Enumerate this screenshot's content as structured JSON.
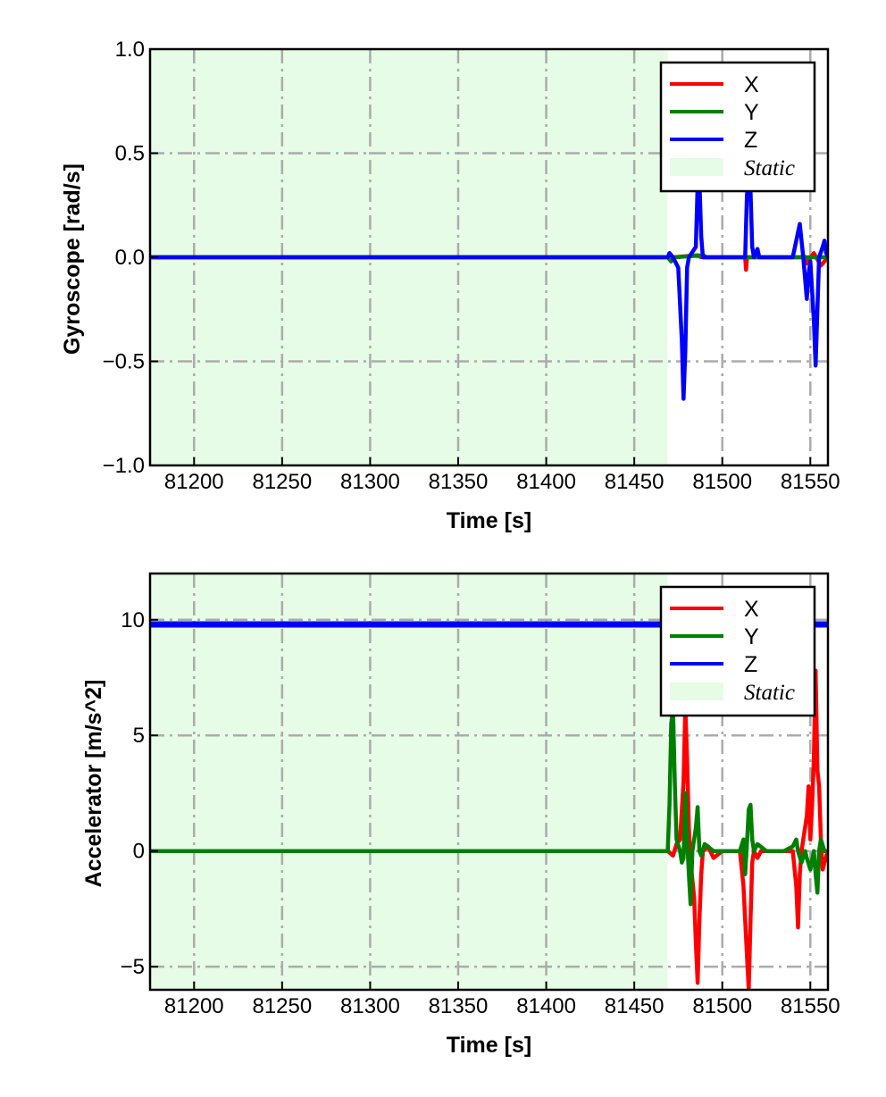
{
  "chart_data": [
    {
      "type": "line",
      "ylabel": "Gyroscope [rad/s]",
      "xlabel": "Time [s]",
      "xlim": [
        81175,
        81560
      ],
      "ylim": [
        -1.0,
        1.0
      ],
      "xticks": [
        81200,
        81250,
        81300,
        81350,
        81400,
        81450,
        81500,
        81550
      ],
      "xtick_labels": [
        "81200",
        "81250",
        "81300",
        "81350",
        "81400",
        "81450",
        "81500",
        "81550"
      ],
      "yticks": [
        -1.0,
        -0.5,
        0.0,
        0.5,
        1.0
      ],
      "ytick_labels": [
        "−1.0",
        "−0.5",
        "0.0",
        "0.5",
        "1.0"
      ],
      "grid": true,
      "legend_position": "top-right",
      "static_region": [
        81175,
        81469
      ],
      "legend": [
        {
          "label": "X",
          "color": "#ff0000",
          "kind": "line"
        },
        {
          "label": "Y",
          "color": "#007f00",
          "kind": "line"
        },
        {
          "label": "Z",
          "color": "#0000ff",
          "kind": "line"
        },
        {
          "label": "Static",
          "color": "#e6fce6",
          "kind": "patch"
        }
      ],
      "series": [
        {
          "name": "X",
          "color": "#ff0000",
          "points": [
            [
              81175,
              0
            ],
            [
              81469,
              0
            ],
            [
              81470,
              0.01
            ],
            [
              81472,
              0
            ],
            [
              81486,
              0.01
            ],
            [
              81488,
              0
            ],
            [
              81513,
              0
            ],
            [
              81513.5,
              -0.06
            ],
            [
              81514,
              0
            ],
            [
              81545,
              0
            ],
            [
              81546,
              0.01
            ],
            [
              81548,
              -0.03
            ],
            [
              81552,
              0.02
            ],
            [
              81556,
              -0.04
            ],
            [
              81560,
              0
            ]
          ]
        },
        {
          "name": "Y",
          "color": "#007f00",
          "points": [
            [
              81175,
              0
            ],
            [
              81469,
              0
            ],
            [
              81471,
              -0.02
            ],
            [
              81473,
              0
            ],
            [
              81489,
              0.01
            ],
            [
              81491,
              0
            ],
            [
              81560,
              0
            ]
          ]
        },
        {
          "name": "Z",
          "color": "#0000ff",
          "points": [
            [
              81175,
              0
            ],
            [
              81469,
              0
            ],
            [
              81470,
              0.02
            ],
            [
              81472,
              0
            ],
            [
              81475,
              -0.05
            ],
            [
              81477,
              -0.4
            ],
            [
              81478,
              -0.68
            ],
            [
              81479,
              -0.45
            ],
            [
              81480,
              -0.05
            ],
            [
              81481,
              0
            ],
            [
              81485,
              0.05
            ],
            [
              81486,
              0.35
            ],
            [
              81487,
              0.37
            ],
            [
              81488,
              0.1
            ],
            [
              81489,
              0
            ],
            [
              81513,
              0
            ],
            [
              81514,
              0.3
            ],
            [
              81515,
              0.38
            ],
            [
              81516,
              0.32
            ],
            [
              81517,
              0.05
            ],
            [
              81518,
              0
            ],
            [
              81520,
              0.04
            ],
            [
              81521,
              0
            ],
            [
              81540,
              0
            ],
            [
              81543,
              0.12
            ],
            [
              81544,
              0.16
            ],
            [
              81545,
              0.08
            ],
            [
              81546,
              0
            ],
            [
              81548,
              -0.2
            ],
            [
              81549,
              -0.08
            ],
            [
              81550,
              -0.02
            ],
            [
              81552,
              -0.3
            ],
            [
              81553,
              -0.52
            ],
            [
              81554,
              -0.25
            ],
            [
              81555,
              0
            ],
            [
              81557,
              0.05
            ],
            [
              81558,
              0.08
            ],
            [
              81559,
              0.02
            ],
            [
              81560,
              0
            ]
          ]
        }
      ]
    },
    {
      "type": "line",
      "ylabel": "Accelerator [m/s^2]",
      "xlabel": "Time [s]",
      "xlim": [
        81175,
        81560
      ],
      "ylim": [
        -6,
        12
      ],
      "xticks": [
        81200,
        81250,
        81300,
        81350,
        81400,
        81450,
        81500,
        81550
      ],
      "xtick_labels": [
        "81200",
        "81250",
        "81300",
        "81350",
        "81400",
        "81450",
        "81500",
        "81550"
      ],
      "yticks": [
        -5,
        0,
        5,
        10
      ],
      "ytick_labels": [
        "−5",
        "0",
        "5",
        "10"
      ],
      "grid": true,
      "legend_position": "top-right",
      "static_region": [
        81175,
        81469
      ],
      "legend": [
        {
          "label": "X",
          "color": "#ff0000",
          "kind": "line"
        },
        {
          "label": "Y",
          "color": "#007f00",
          "kind": "line"
        },
        {
          "label": "Z",
          "color": "#0000ff",
          "kind": "line"
        },
        {
          "label": "Static",
          "color": "#e6fce6",
          "kind": "patch"
        }
      ],
      "series": [
        {
          "name": "Z",
          "color": "#0000ff",
          "points": [
            [
              81175,
              9.8
            ],
            [
              81560,
              9.8
            ]
          ]
        },
        {
          "name": "X",
          "color": "#ff0000",
          "points": [
            [
              81175,
              0
            ],
            [
              81469,
              0
            ],
            [
              81472,
              -0.2
            ],
            [
              81474,
              0.3
            ],
            [
              81476,
              0.5
            ],
            [
              81478,
              3
            ],
            [
              81479,
              6.2
            ],
            [
              81480,
              4
            ],
            [
              81481,
              1
            ],
            [
              81482,
              -0.5
            ],
            [
              81484,
              -2
            ],
            [
              81485,
              -4
            ],
            [
              81486,
              -5.7
            ],
            [
              81487,
              -3
            ],
            [
              81488,
              -1
            ],
            [
              81489,
              0
            ],
            [
              81492,
              0.2
            ],
            [
              81495,
              -0.3
            ],
            [
              81500,
              0
            ],
            [
              81510,
              0
            ],
            [
              81512,
              -1.5
            ],
            [
              81514,
              -4.5
            ],
            [
              81515,
              -6
            ],
            [
              81516,
              -3
            ],
            [
              81517,
              -0.5
            ],
            [
              81518,
              0
            ],
            [
              81520,
              -0.3
            ],
            [
              81522,
              0
            ],
            [
              81540,
              0
            ],
            [
              81542,
              -1.5
            ],
            [
              81543,
              -3.3
            ],
            [
              81544,
              -1
            ],
            [
              81545,
              0
            ],
            [
              81548,
              1.5
            ],
            [
              81549,
              2.8
            ],
            [
              81550,
              0.5
            ],
            [
              81551,
              2
            ],
            [
              81552,
              4
            ],
            [
              81553,
              7.8
            ],
            [
              81554,
              3.5
            ],
            [
              81555,
              2.8
            ],
            [
              81556,
              0.5
            ],
            [
              81557,
              -0.8
            ],
            [
              81558,
              -0.5
            ],
            [
              81560,
              0
            ]
          ]
        },
        {
          "name": "Y",
          "color": "#007f00",
          "points": [
            [
              81175,
              0
            ],
            [
              81469,
              0
            ],
            [
              81470,
              2
            ],
            [
              81471,
              5.5
            ],
            [
              81472,
              6.2
            ],
            [
              81473,
              3
            ],
            [
              81474,
              0.5
            ],
            [
              81476,
              0
            ],
            [
              81477,
              -0.5
            ],
            [
              81478,
              -0.3
            ],
            [
              81479,
              2.5
            ],
            [
              81480,
              0.5
            ],
            [
              81481,
              -1
            ],
            [
              81482,
              -2.3
            ],
            [
              81483,
              0
            ],
            [
              81485,
              1
            ],
            [
              81486,
              1.9
            ],
            [
              81487,
              0
            ],
            [
              81488,
              -0.2
            ],
            [
              81490,
              0.3
            ],
            [
              81495,
              0
            ],
            [
              81500,
              0
            ],
            [
              81510,
              0
            ],
            [
              81512,
              0.5
            ],
            [
              81513,
              -1
            ],
            [
              81514,
              0.3
            ],
            [
              81515,
              1.8
            ],
            [
              81516,
              2
            ],
            [
              81517,
              0.5
            ],
            [
              81518,
              0
            ],
            [
              81520,
              0.3
            ],
            [
              81525,
              0
            ],
            [
              81535,
              0
            ],
            [
              81540,
              0.2
            ],
            [
              81542,
              0.5
            ],
            [
              81543,
              0
            ],
            [
              81545,
              -0.5
            ],
            [
              81547,
              0
            ],
            [
              81548,
              -0.3
            ],
            [
              81550,
              -0.8
            ],
            [
              81552,
              0
            ],
            [
              81553,
              -1
            ],
            [
              81554,
              -1.8
            ],
            [
              81555,
              0
            ],
            [
              81556,
              0.5
            ],
            [
              81558,
              0
            ],
            [
              81560,
              0
            ]
          ]
        }
      ]
    }
  ]
}
